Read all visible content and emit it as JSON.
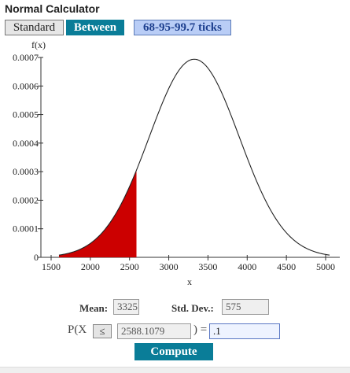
{
  "app": {
    "title": "Normal Calculator"
  },
  "mode_buttons": {
    "standard": "Standard",
    "between": "Between",
    "ticks": "68-95-99.7 ticks"
  },
  "colors": {
    "accent": "#0a7d98",
    "shade": "#cc0000",
    "ticks_bg": "#b9cdf6"
  },
  "chart_data": {
    "type": "area",
    "ylabel": "f(x)",
    "xlabel": "x",
    "mean": 3325,
    "sd": 575,
    "xlim": [
      1600,
      5050
    ],
    "ylim": [
      0,
      0.0007
    ],
    "x_ticks": [
      1500,
      2000,
      2500,
      3000,
      3500,
      4000,
      4500,
      5000
    ],
    "x_tick_labels": [
      "1500",
      "2000",
      "2500",
      "3000",
      "3500",
      "4000",
      "4500",
      "5000"
    ],
    "y_ticks": [
      0,
      0.0001,
      0.0002,
      0.0003,
      0.0004,
      0.0005,
      0.0006,
      0.0007
    ],
    "y_tick_labels": [
      "0",
      "0.0001",
      "0.0002",
      "0.0003",
      "0.0004",
      "0.0005",
      "0.0006",
      "0.0007"
    ],
    "shaded_region": {
      "from": 1600,
      "to": 2588.1079
    }
  },
  "form": {
    "mean_label": "Mean:",
    "mean_value": "3325",
    "sd_label": "Std. Dev.:",
    "sd_value": "575",
    "prob_prefix": "P(X",
    "comparator": "≤",
    "x_value": "2588.1079",
    "prob_suffix": ") =",
    "prob_value": ".1",
    "compute_label": "Compute"
  }
}
